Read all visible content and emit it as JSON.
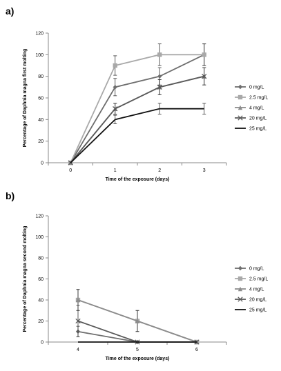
{
  "panels": [
    {
      "label": "a)",
      "chart_data": {
        "type": "line",
        "xlabel": "Time of the exposure (days)",
        "ylabel": "Percentage of Daphnia magna first molting",
        "x": [
          0,
          1,
          2,
          3
        ],
        "ylim": [
          0,
          120
        ],
        "yticks": [
          0,
          20,
          40,
          60,
          80,
          100,
          120
        ],
        "grid": false,
        "legend_position": "right",
        "series": [
          {
            "name": "0 mg/L",
            "color": "#6e6e6e",
            "marker": "diamond",
            "values": [
              0,
              70,
              80,
              100
            ],
            "errors": [
              0,
              8,
              8,
              10
            ]
          },
          {
            "name": "2.5 mg/L",
            "color": "#a9a9a9",
            "marker": "square",
            "values": [
              0,
              90,
              100,
              100
            ],
            "errors": [
              0,
              9,
              10,
              10
            ]
          },
          {
            "name": "4 mg/L",
            "color": "#8c8c8c",
            "marker": "triangle",
            "values": [
              0,
              50,
              70,
              80
            ],
            "errors": [
              0,
              5,
              7,
              8
            ]
          },
          {
            "name": "20 mg/L",
            "color": "#5a5a5a",
            "marker": "x",
            "values": [
              0,
              50,
              70,
              80
            ],
            "errors": [
              0,
              5,
              7,
              8
            ]
          },
          {
            "name": "25 mg/L",
            "color": "#111111",
            "marker": "none",
            "values": [
              0,
              40,
              50,
              50
            ],
            "errors": [
              0,
              4,
              5,
              5
            ]
          }
        ]
      }
    },
    {
      "label": "b)",
      "chart_data": {
        "type": "line",
        "xlabel": "Time of the exposure (days)",
        "ylabel": "Percentage of Daphnia magna second molting",
        "x": [
          4,
          5,
          6
        ],
        "ylim": [
          0,
          120
        ],
        "yticks": [
          0,
          20,
          40,
          60,
          80,
          100,
          120
        ],
        "grid": false,
        "legend_position": "right",
        "series": [
          {
            "name": "0 mg/L",
            "color": "#6e6e6e",
            "marker": "diamond",
            "values": [
              10,
              0,
              0
            ],
            "errors": [
              5,
              0,
              0
            ]
          },
          {
            "name": "2.5 mg/L",
            "color": "#a9a9a9",
            "marker": "square",
            "values": [
              40,
              20,
              0
            ],
            "errors": [
              10,
              10,
              0
            ]
          },
          {
            "name": "4 mg/L",
            "color": "#8c8c8c",
            "marker": "triangle",
            "values": [
              40,
              20,
              0
            ],
            "errors": [
              10,
              10,
              0
            ]
          },
          {
            "name": "20 mg/L",
            "color": "#5a5a5a",
            "marker": "x",
            "values": [
              20,
              0,
              0
            ],
            "errors": [
              15,
              0,
              0
            ]
          },
          {
            "name": "25 mg/L",
            "color": "#111111",
            "marker": "none",
            "values": [
              0,
              0,
              0
            ],
            "errors": [
              0,
              0,
              0
            ]
          }
        ]
      }
    }
  ]
}
